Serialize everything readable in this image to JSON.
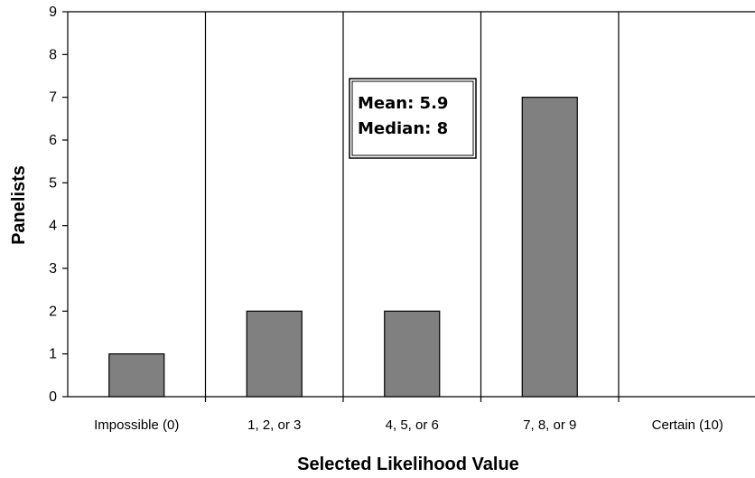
{
  "chart_data": {
    "type": "bar",
    "categories": [
      "Impossible (0)",
      "1, 2, or 3",
      "4, 5, or 6",
      "7, 8, or 9",
      "Certain (10)"
    ],
    "values": [
      1,
      2,
      2,
      7,
      0
    ],
    "xlabel": "Selected Likelihood Value",
    "ylabel": "Panelists",
    "ylim": [
      0,
      9
    ],
    "yticks": [
      0,
      1,
      2,
      3,
      4,
      5,
      6,
      7,
      8,
      9
    ],
    "bar_color": "#808080",
    "annotation": {
      "line1": "Mean: 5.9",
      "line2": "Median: 8"
    },
    "grid": false
  }
}
